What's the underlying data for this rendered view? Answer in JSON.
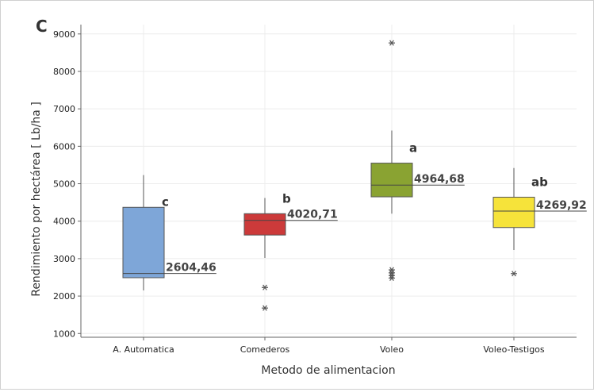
{
  "panel_label": "C",
  "chart_data": {
    "type": "boxplot",
    "xlabel": "Metodo de alimentacion",
    "ylabel": "Rendimiento por hectárea [ Lb/ha ]",
    "ylim": [
      900,
      9250
    ],
    "yticks": [
      1000,
      2000,
      3000,
      4000,
      5000,
      6000,
      7000,
      8000,
      9000
    ],
    "grid": true,
    "categories": [
      "A. Automatica",
      "Comederos",
      "Voleo",
      "Voleo-Testigos"
    ],
    "boxes": [
      {
        "category": "A. Automatica",
        "color": "#7ea6d8",
        "whisker_low": 2150,
        "q1": 2490,
        "median": 2604.46,
        "q3": 4370,
        "whisker_high": 5230,
        "outliers": [],
        "median_label": "2604,46",
        "group_letter": "c"
      },
      {
        "category": "Comederos",
        "color": "#cc3a3a",
        "whisker_low": 3020,
        "q1": 3630,
        "median": 4020.71,
        "q3": 4200,
        "whisker_high": 4620,
        "outliers": [
          2230,
          1680
        ],
        "median_label": "4020,71",
        "group_letter": "b"
      },
      {
        "category": "Voleo",
        "color": "#8aa332",
        "whisker_low": 4200,
        "q1": 4650,
        "median": 4964.68,
        "q3": 5550,
        "whisker_high": 6420,
        "outliers": [
          8760,
          2700,
          2620,
          2550,
          2480
        ],
        "median_label": "4964,68",
        "group_letter": "a"
      },
      {
        "category": "Voleo-Testigos",
        "color": "#f6e33a",
        "whisker_low": 3230,
        "q1": 3830,
        "median": 4269.92,
        "q3": 4640,
        "whisker_high": 5420,
        "outliers": [
          2600
        ],
        "median_label": "4269,92",
        "group_letter": "ab"
      }
    ]
  }
}
